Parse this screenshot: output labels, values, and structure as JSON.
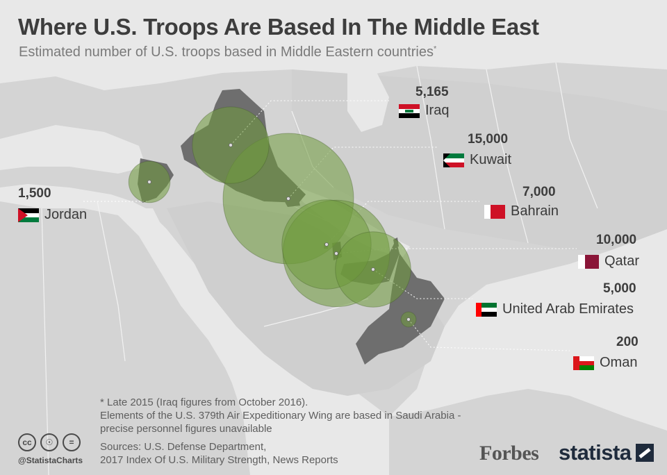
{
  "header": {
    "title": "Where U.S. Troops Are Based In The Middle East",
    "subtitle": "Estimated number of U.S. troops based in Middle Eastern countries",
    "subtitle_mark": "*"
  },
  "countries": [
    {
      "name": "Iraq",
      "troops": 5165,
      "troops_label": "5,165",
      "flag": "iraq-flag-icon"
    },
    {
      "name": "Kuwait",
      "troops": 15000,
      "troops_label": "15,000",
      "flag": "kuwait-flag-icon"
    },
    {
      "name": "Jordan",
      "troops": 1500,
      "troops_label": "1,500",
      "flag": "jordan-flag-icon"
    },
    {
      "name": "Bahrain",
      "troops": 7000,
      "troops_label": "7,000",
      "flag": "bahrain-flag-icon"
    },
    {
      "name": "Qatar",
      "troops": 10000,
      "troops_label": "10,000",
      "flag": "qatar-flag-icon"
    },
    {
      "name": "United Arab Emirates",
      "troops": 5000,
      "troops_label": "5,000",
      "flag": "uae-flag-icon"
    },
    {
      "name": "Oman",
      "troops": 200,
      "troops_label": "200",
      "flag": "oman-flag-icon"
    }
  ],
  "footnote": {
    "line1": "* Late 2015 (Iraq figures from October 2016).",
    "line2": "Elements of the U.S. 379th Air Expeditionary Wing are based in Saudi Arabia -",
    "line3": "precise personnel figures unavailable"
  },
  "sources": {
    "line1": "Sources: U.S. Defense Department,",
    "line2": "2017 Index Of U.S. Military Strength, News Reports"
  },
  "branding": {
    "handle": "@StatistaCharts",
    "cc_icons": [
      "cc-icon",
      "attribution-icon",
      "no-derivatives-icon"
    ],
    "cc_glyphs": [
      "cc",
      "☉",
      "="
    ],
    "forbes": "Forbes",
    "statista": "statista"
  },
  "colors": {
    "background": "#e6e6e6",
    "land": "#d2d2d2",
    "highlight_country": "#6e6e6e",
    "bubble": "#6f9a3c",
    "bubble_dark": "#3f5a26"
  }
}
